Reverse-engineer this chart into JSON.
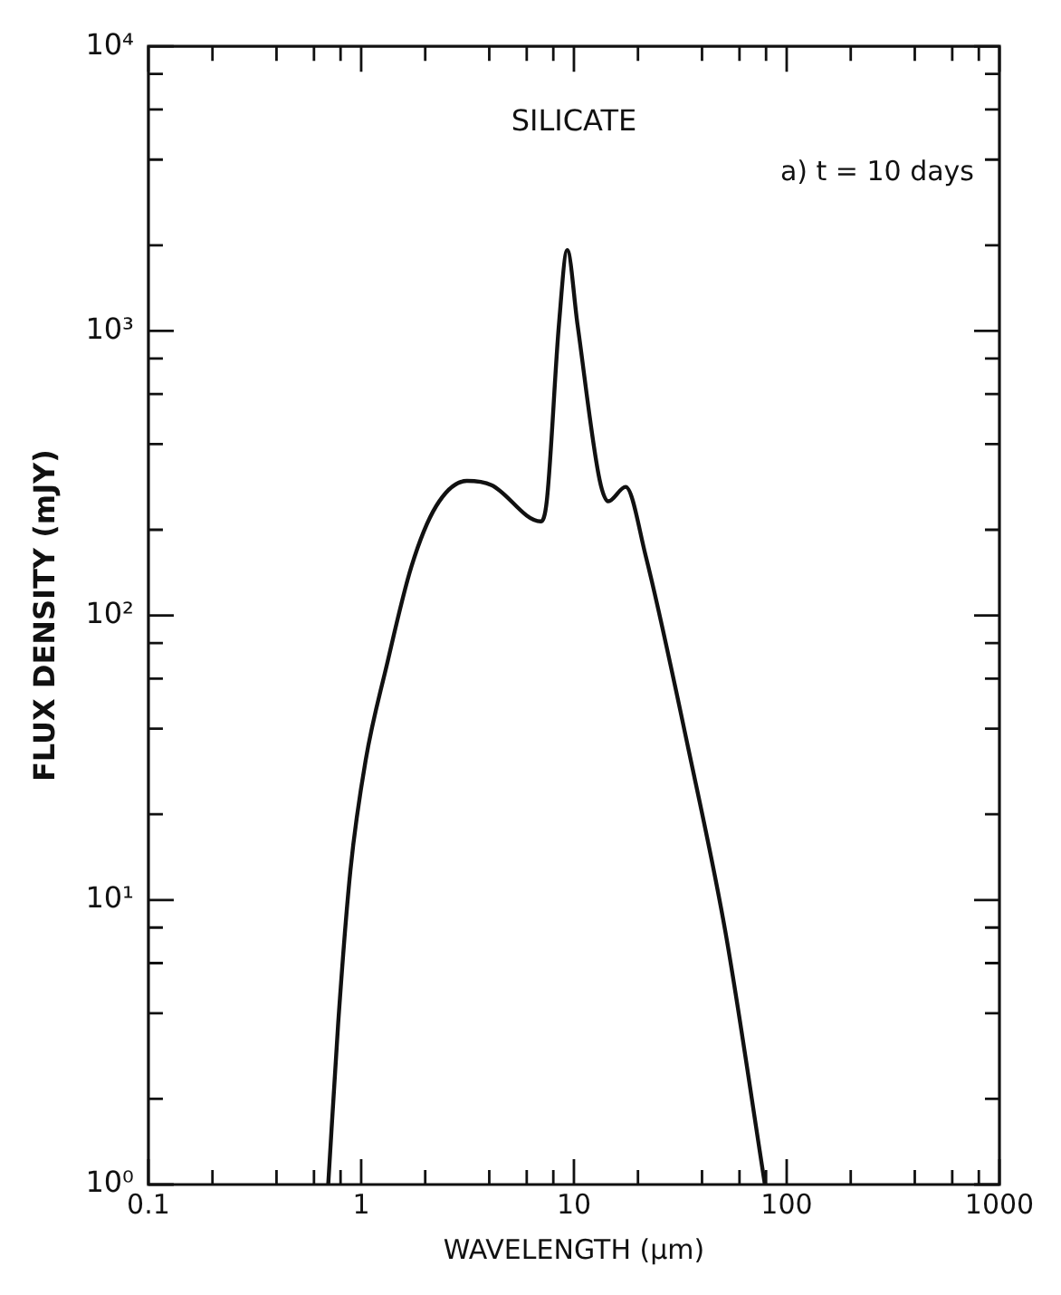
{
  "chart_data": {
    "type": "line",
    "title": "SILICATE",
    "annotations": [
      "a) t = 10 days"
    ],
    "xlabel": "WAVELENGTH (μm)",
    "ylabel": "FLUX DENSITY (mJY)",
    "log": "xy",
    "marker": "none",
    "color": "#111111",
    "x": [
      0.7,
      0.78,
      0.89,
      1.05,
      1.32,
      1.72,
      2.25,
      3.14,
      4.1,
      6.98,
      7.46,
      8.5,
      9.3,
      10.4,
      13.2,
      14.5,
      17.5,
      21.7,
      34.5,
      51.4,
      79
    ],
    "values": [
      1,
      3.7,
      12.7,
      31,
      67,
      148,
      242,
      297,
      287,
      214,
      254,
      1050,
      1924,
      1050,
      300,
      252,
      283,
      163,
      34,
      7.8,
      1
    ],
    "xlim": [
      0.1,
      1000
    ],
    "ylim": [
      1,
      10000
    ],
    "xticks": [
      0.1,
      {
        "value": 0.2,
        "label": null
      },
      {
        "value": 0.4,
        "label": null
      },
      {
        "value": 0.6,
        "label": null
      },
      {
        "value": 0.8,
        "label": null
      },
      1,
      {
        "value": 2,
        "label": null
      },
      {
        "value": 4,
        "label": null
      },
      {
        "value": 6,
        "label": null
      },
      {
        "value": 8,
        "label": null
      },
      10,
      {
        "value": 20,
        "label": null
      },
      {
        "value": 40,
        "label": null
      },
      {
        "value": 60,
        "label": null
      },
      {
        "value": 80,
        "label": null
      },
      100,
      {
        "value": 200,
        "label": null
      },
      {
        "value": 400,
        "label": null
      },
      {
        "value": 600,
        "label": null
      },
      {
        "value": 800,
        "label": null
      },
      1000
    ],
    "yticks": [
      {
        "value": 1,
        "label": "10⁰"
      },
      {
        "value": 2,
        "label": null
      },
      {
        "value": 4,
        "label": null
      },
      {
        "value": 6,
        "label": null
      },
      {
        "value": 8,
        "label": null
      },
      {
        "value": 10,
        "label": "10¹"
      },
      {
        "value": 20,
        "label": null
      },
      {
        "value": 40,
        "label": null
      },
      {
        "value": 60,
        "label": null
      },
      {
        "value": 80,
        "label": null
      },
      {
        "value": 100,
        "label": "10²"
      },
      {
        "value": 200,
        "label": null
      },
      {
        "value": 400,
        "label": null
      },
      {
        "value": 600,
        "label": null
      },
      {
        "value": 800,
        "label": null
      },
      {
        "value": 1000,
        "label": "10³"
      },
      {
        "value": 2000,
        "label": null
      },
      {
        "value": 4000,
        "label": null
      },
      {
        "value": 6000,
        "label": null
      },
      {
        "value": 8000,
        "label": null
      },
      {
        "value": 10000,
        "label": "10⁴"
      }
    ]
  }
}
